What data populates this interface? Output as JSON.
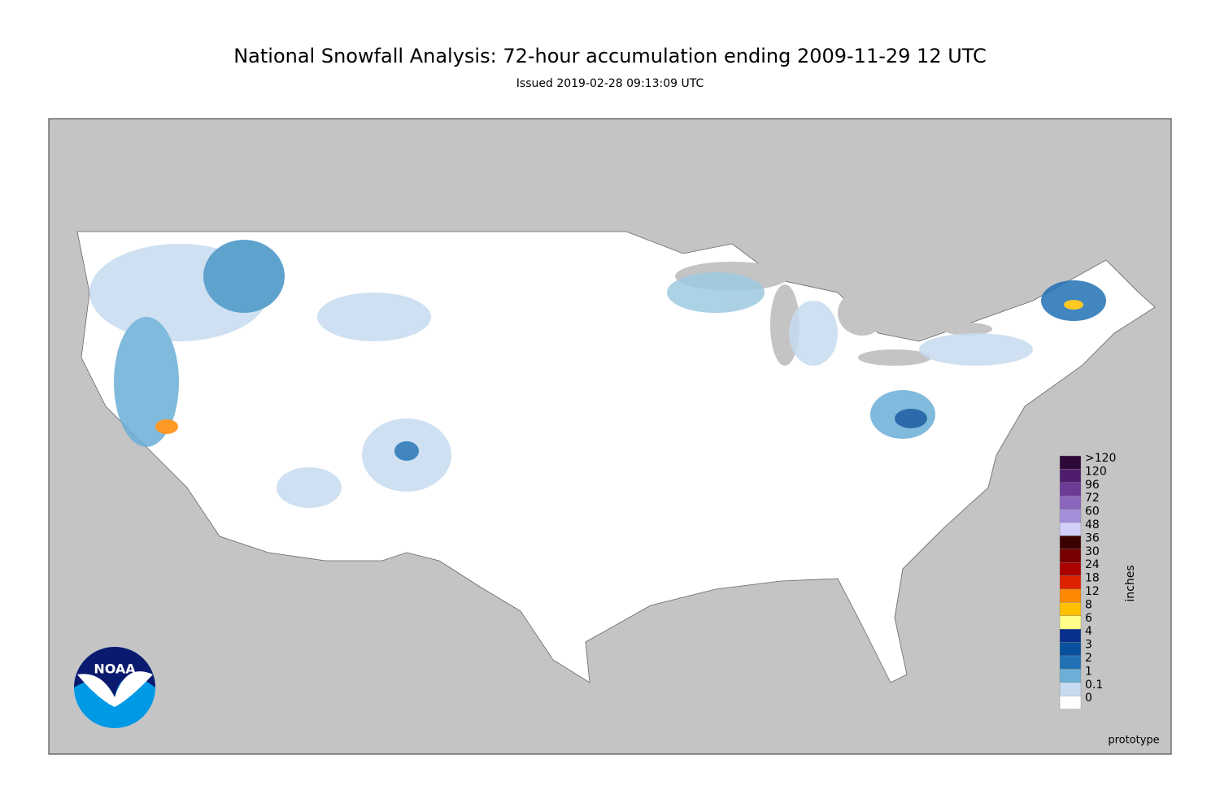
{
  "header": {
    "title": "National Snowfall Analysis: 72-hour accumulation ending 2009-11-29 12 UTC",
    "subtitle": "Issued 2019-02-28 09:13:09 UTC"
  },
  "colorbar": {
    "label": "inches",
    "levels": [
      {
        "label": ">120",
        "color": "#2d0a3a"
      },
      {
        "label": "120",
        "color": "#4f1c6e"
      },
      {
        "label": "96",
        "color": "#6b3b96"
      },
      {
        "label": "72",
        "color": "#8a66bd"
      },
      {
        "label": "60",
        "color": "#a38fd9"
      },
      {
        "label": "48",
        "color": "#d2d0fa"
      },
      {
        "label": "36",
        "color": "#3b0000"
      },
      {
        "label": "30",
        "color": "#770000"
      },
      {
        "label": "24",
        "color": "#aa0000"
      },
      {
        "label": "18",
        "color": "#dd2200"
      },
      {
        "label": "12",
        "color": "#ff8800"
      },
      {
        "label": "8",
        "color": "#ffc000"
      },
      {
        "label": "6",
        "color": "#ffff88"
      },
      {
        "label": "4",
        "color": "#08308c"
      },
      {
        "label": "3",
        "color": "#08519c"
      },
      {
        "label": "2",
        "color": "#2171b5"
      },
      {
        "label": "1",
        "color": "#6baed6"
      },
      {
        "label": "0.1",
        "color": "#c6dbef"
      },
      {
        "label": "0",
        "color": "#ffffff"
      }
    ]
  },
  "logo": {
    "text": "NOAA"
  },
  "footer": {
    "note": "prototype"
  }
}
